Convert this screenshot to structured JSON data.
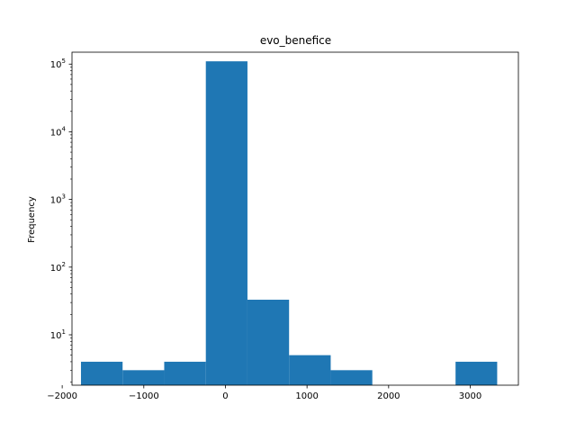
{
  "chart_data": {
    "type": "bar",
    "title": "evo_benefice",
    "xlabel": "",
    "ylabel": "Frequency",
    "y_scale": "log",
    "color": "#1f77b4",
    "xlim": [
      -1880,
      3590
    ],
    "ylim": [
      1.8,
      150000
    ],
    "x_ticks": [
      -2000,
      -1000,
      0,
      1000,
      2000,
      3000
    ],
    "x_tick_labels": [
      "−2000",
      "−1000",
      "0",
      "1000",
      "2000",
      "3000"
    ],
    "y_ticks": [
      10,
      100,
      1000,
      10000,
      100000
    ],
    "y_tick_labels": [
      {
        "base": "10",
        "exp": "1"
      },
      {
        "base": "10",
        "exp": "2"
      },
      {
        "base": "10",
        "exp": "3"
      },
      {
        "base": "10",
        "exp": "4"
      },
      {
        "base": "10",
        "exp": "5"
      }
    ],
    "bin_edges": [
      -1770,
      -1260,
      -750,
      -240,
      270,
      780,
      1290,
      1800,
      2310,
      2820,
      3330
    ],
    "counts": [
      4,
      3,
      4,
      110000,
      33,
      5,
      3,
      0,
      0,
      4
    ],
    "grid": false,
    "legend": "none"
  }
}
